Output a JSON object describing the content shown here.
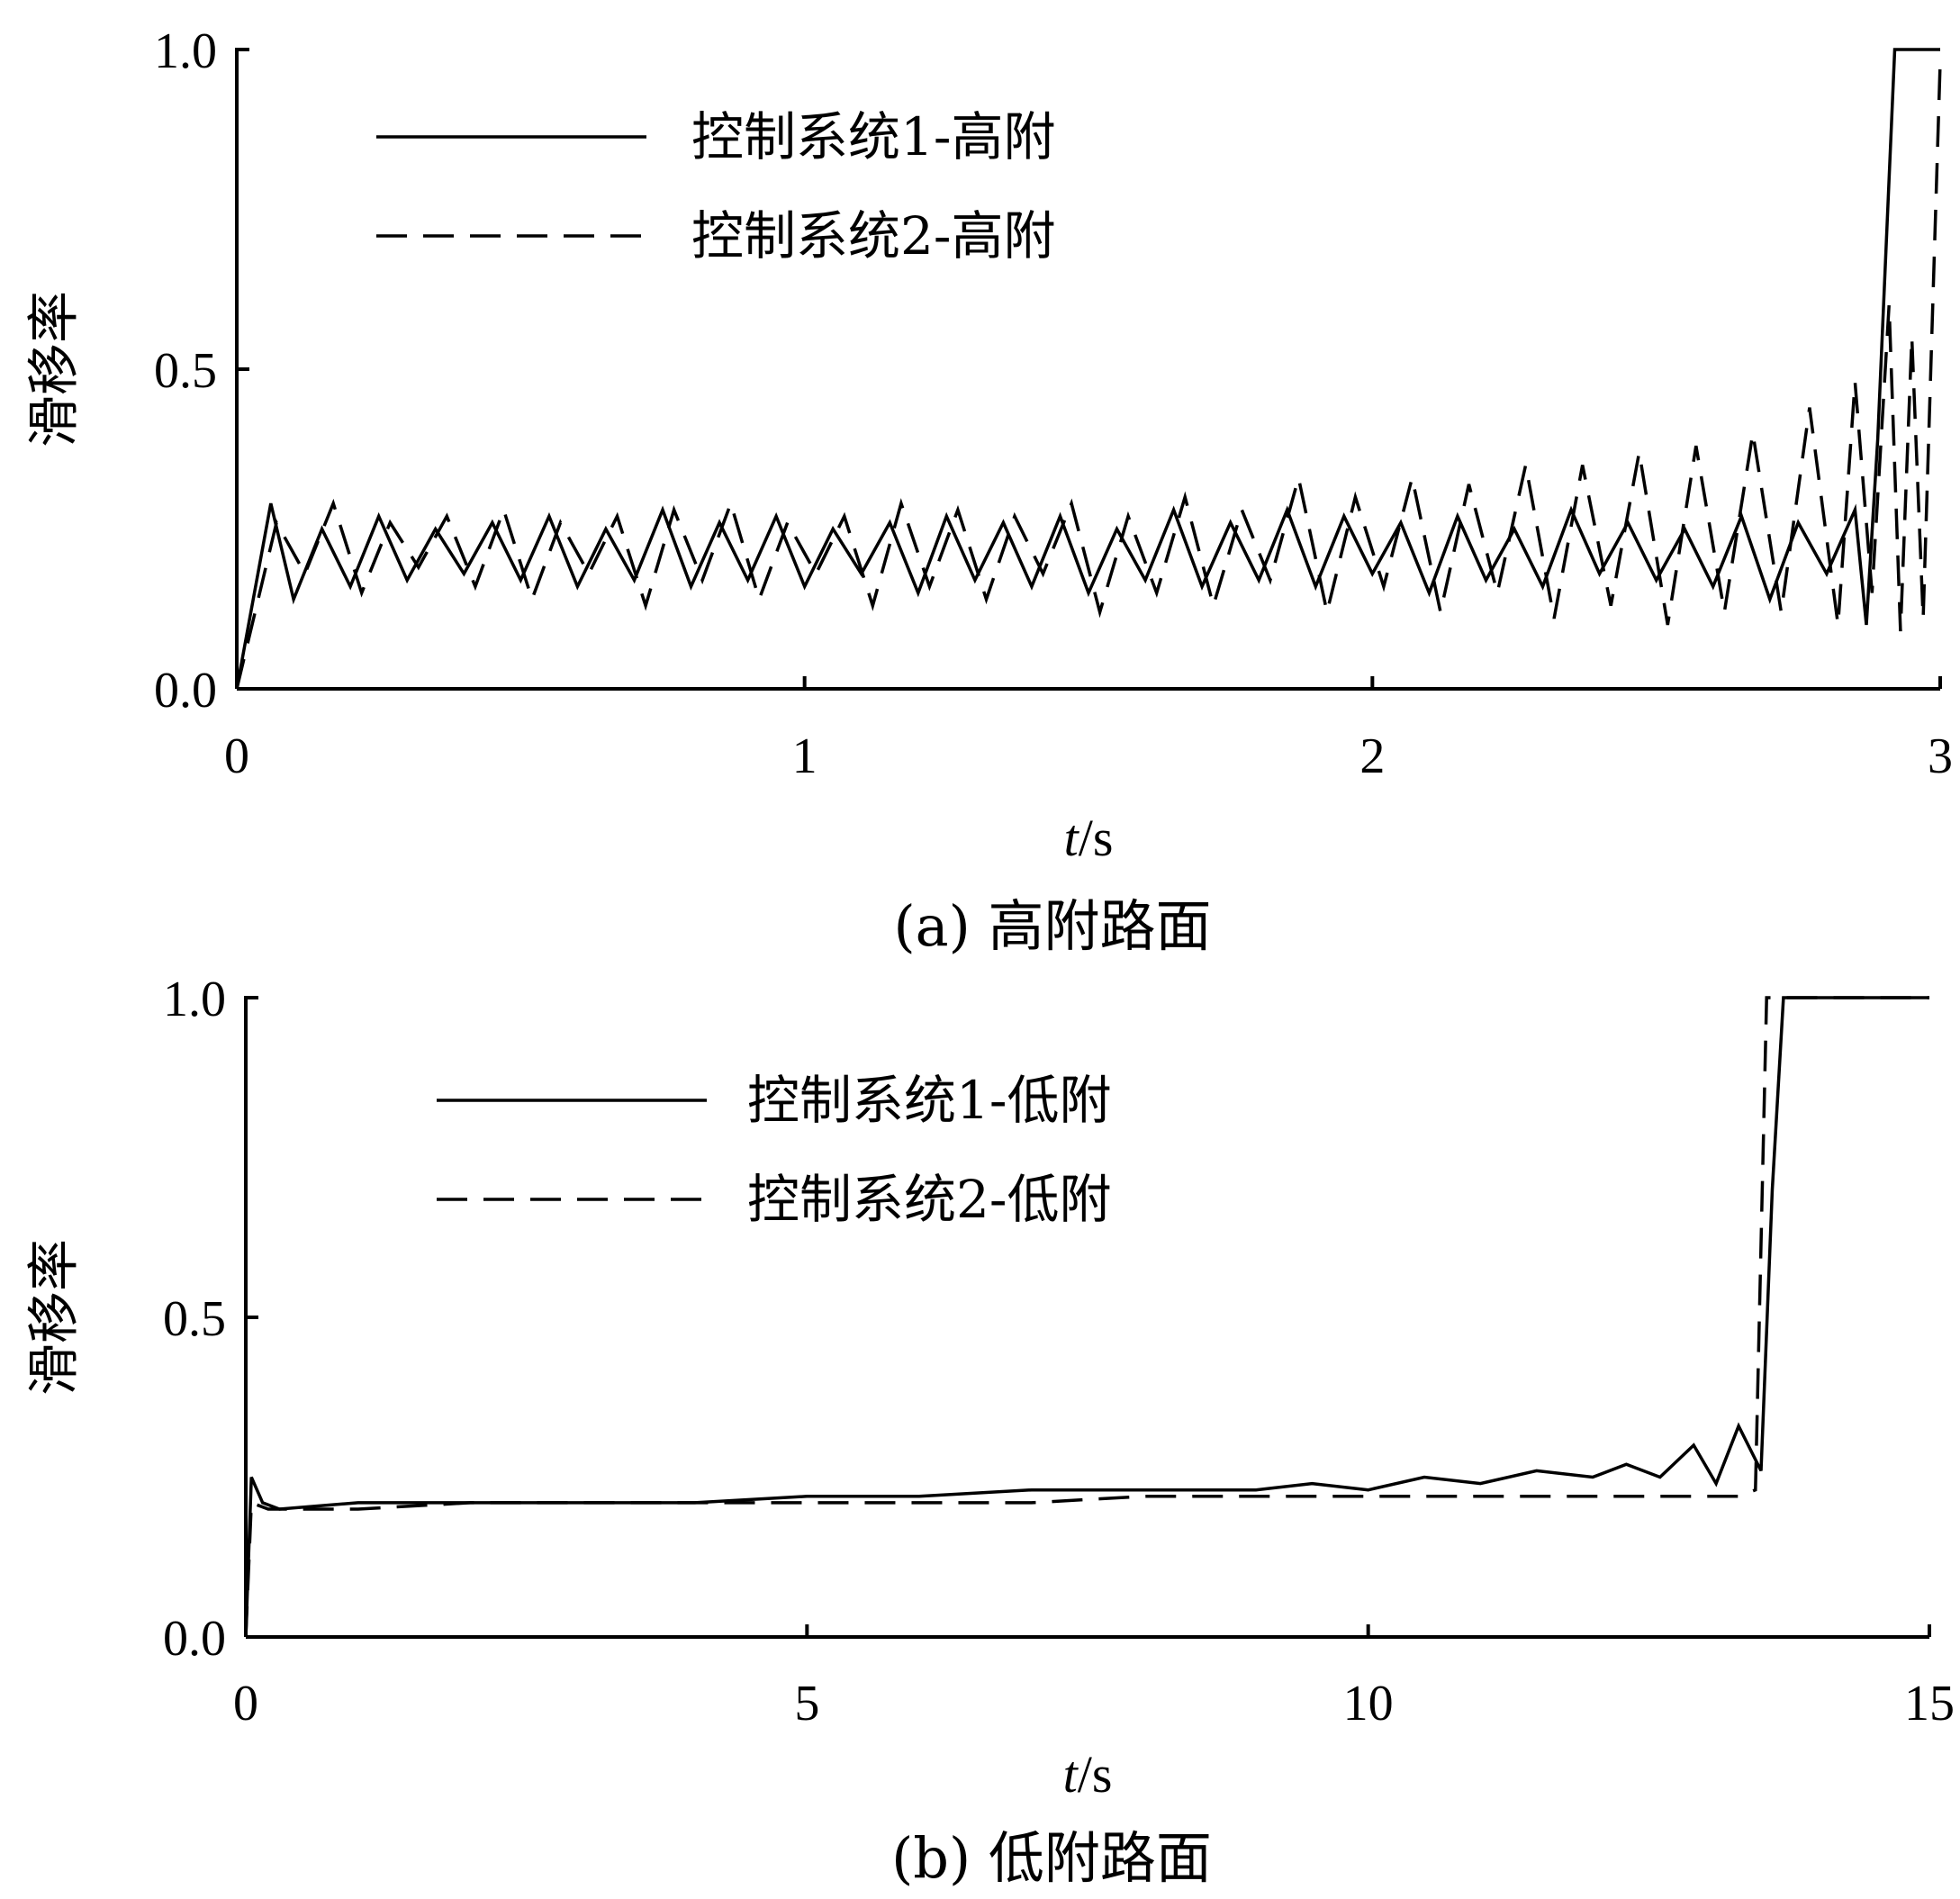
{
  "chart_data": [
    {
      "type": "line",
      "caption": "(a) 高附路面",
      "xlabel": "t/s",
      "xlabel_italic": "t",
      "xlabel_unit": "/s",
      "ylabel": "滑移率",
      "xlim": [
        0,
        3
      ],
      "ylim": [
        0,
        1.0
      ],
      "xticks": [
        "0",
        "1",
        "2",
        "3"
      ],
      "yticks": [
        "0.0",
        "0.5",
        "1.0"
      ],
      "legend_position": "top-left",
      "series": [
        {
          "name": "控制系统1-高附",
          "style": "solid",
          "x": [
            0,
            0.06,
            0.1,
            0.15,
            0.2,
            0.25,
            0.3,
            0.35,
            0.4,
            0.45,
            0.5,
            0.55,
            0.6,
            0.65,
            0.7,
            0.75,
            0.8,
            0.85,
            0.9,
            0.95,
            1.0,
            1.05,
            1.1,
            1.15,
            1.2,
            1.25,
            1.3,
            1.35,
            1.4,
            1.45,
            1.5,
            1.55,
            1.6,
            1.65,
            1.7,
            1.75,
            1.8,
            1.85,
            1.9,
            1.95,
            2.0,
            2.05,
            2.1,
            2.15,
            2.2,
            2.25,
            2.3,
            2.35,
            2.4,
            2.45,
            2.5,
            2.55,
            2.6,
            2.65,
            2.7,
            2.75,
            2.8,
            2.85,
            2.87,
            2.89,
            2.92,
            3.0
          ],
          "y": [
            0,
            0.29,
            0.14,
            0.25,
            0.16,
            0.27,
            0.17,
            0.25,
            0.18,
            0.26,
            0.17,
            0.27,
            0.16,
            0.25,
            0.17,
            0.28,
            0.16,
            0.26,
            0.17,
            0.27,
            0.16,
            0.25,
            0.18,
            0.26,
            0.15,
            0.27,
            0.17,
            0.26,
            0.16,
            0.27,
            0.15,
            0.25,
            0.17,
            0.28,
            0.16,
            0.26,
            0.17,
            0.28,
            0.16,
            0.27,
            0.18,
            0.26,
            0.15,
            0.27,
            0.17,
            0.25,
            0.16,
            0.28,
            0.18,
            0.26,
            0.17,
            0.25,
            0.16,
            0.27,
            0.14,
            0.26,
            0.18,
            0.28,
            0.1,
            0.39,
            1.0,
            1.0
          ]
        },
        {
          "name": "控制系统2-高附",
          "style": "dashed",
          "x": [
            0,
            0.07,
            0.12,
            0.17,
            0.22,
            0.27,
            0.32,
            0.37,
            0.42,
            0.47,
            0.52,
            0.57,
            0.62,
            0.67,
            0.72,
            0.77,
            0.82,
            0.87,
            0.92,
            0.97,
            1.02,
            1.07,
            1.12,
            1.17,
            1.22,
            1.27,
            1.32,
            1.37,
            1.42,
            1.47,
            1.52,
            1.57,
            1.62,
            1.67,
            1.72,
            1.77,
            1.82,
            1.87,
            1.92,
            1.97,
            2.02,
            2.07,
            2.12,
            2.17,
            2.22,
            2.27,
            2.32,
            2.37,
            2.42,
            2.47,
            2.52,
            2.57,
            2.62,
            2.67,
            2.72,
            2.77,
            2.82,
            2.85,
            2.88,
            2.91,
            2.93,
            2.95,
            2.97,
            3.0
          ],
          "y": [
            0,
            0.26,
            0.18,
            0.29,
            0.15,
            0.26,
            0.19,
            0.27,
            0.16,
            0.28,
            0.14,
            0.26,
            0.18,
            0.27,
            0.13,
            0.28,
            0.17,
            0.29,
            0.14,
            0.26,
            0.18,
            0.27,
            0.13,
            0.29,
            0.16,
            0.28,
            0.14,
            0.27,
            0.18,
            0.29,
            0.12,
            0.27,
            0.15,
            0.3,
            0.13,
            0.28,
            0.17,
            0.33,
            0.12,
            0.3,
            0.16,
            0.33,
            0.12,
            0.32,
            0.15,
            0.35,
            0.11,
            0.35,
            0.13,
            0.37,
            0.1,
            0.38,
            0.12,
            0.4,
            0.12,
            0.44,
            0.1,
            0.48,
            0.15,
            0.6,
            0.09,
            0.55,
            0.11,
            0.98
          ]
        }
      ]
    },
    {
      "type": "line",
      "caption": "(b) 低附路面",
      "xlabel": "t/s",
      "xlabel_italic": "t",
      "xlabel_unit": "/s",
      "ylabel": "滑移率",
      "xlim": [
        0,
        15
      ],
      "ylim": [
        0,
        1.0
      ],
      "xticks": [
        "0",
        "5",
        "10",
        "15"
      ],
      "yticks": [
        "0.0",
        "0.5",
        "1.0"
      ],
      "legend_position": "top-left",
      "series": [
        {
          "name": "控制系统1-低附",
          "style": "solid",
          "x": [
            0,
            0.05,
            0.15,
            0.3,
            1,
            2,
            3,
            4,
            5,
            6,
            7,
            8,
            9,
            9.5,
            10,
            10.5,
            11,
            11.5,
            12,
            12.3,
            12.6,
            12.9,
            13.1,
            13.3,
            13.5,
            13.6,
            13.7,
            13.8,
            15
          ],
          "y": [
            0,
            0.25,
            0.21,
            0.2,
            0.21,
            0.21,
            0.21,
            0.21,
            0.22,
            0.22,
            0.23,
            0.23,
            0.23,
            0.24,
            0.23,
            0.25,
            0.24,
            0.26,
            0.25,
            0.27,
            0.25,
            0.3,
            0.24,
            0.33,
            0.26,
            0.7,
            1.0,
            1.0,
            1.0
          ]
        },
        {
          "name": "控制系统2-低附",
          "style": "dashed",
          "x": [
            0,
            0.05,
            0.2,
            1,
            2,
            3,
            4,
            5,
            6,
            7,
            8,
            9,
            10,
            11,
            12,
            12.5,
            13,
            13.3,
            13.45,
            13.55,
            15
          ],
          "y": [
            0,
            0.21,
            0.2,
            0.2,
            0.21,
            0.21,
            0.21,
            0.21,
            0.21,
            0.21,
            0.22,
            0.22,
            0.22,
            0.22,
            0.22,
            0.22,
            0.22,
            0.22,
            0.23,
            1.0,
            1.0
          ]
        }
      ]
    }
  ]
}
